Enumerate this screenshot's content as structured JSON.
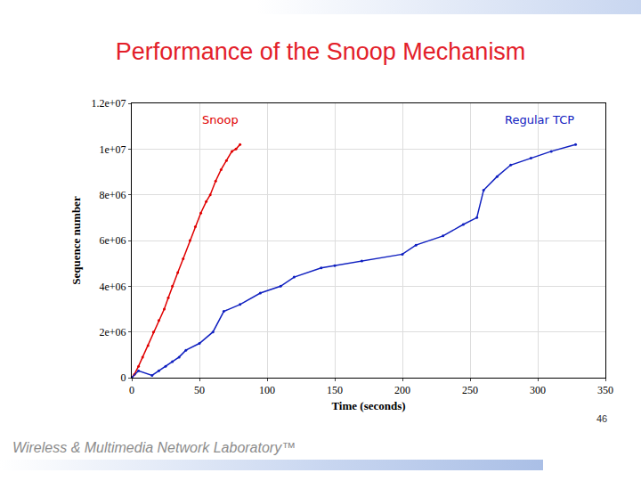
{
  "chart_data": {
    "type": "scatter",
    "title": "Performance of the Snoop Mechanism",
    "x_label": "Time (seconds)",
    "y_label": "Sequence number",
    "series": [
      {
        "name": "Snoop",
        "color": "#e00000",
        "x": [
          0,
          2,
          5,
          8,
          12,
          16,
          20,
          24,
          27,
          30,
          34,
          38,
          43,
          47,
          51,
          55,
          58,
          62,
          66,
          70,
          74,
          77,
          80
        ],
        "values": [
          0,
          150000,
          500000,
          900000,
          1400000,
          2000000,
          2500000,
          3000000,
          3500000,
          4000000,
          4600000,
          5200000,
          6000000,
          6600000,
          7200000,
          7700000,
          8000000,
          8600000,
          9100000,
          9500000,
          9900000,
          10000000,
          10200000
        ]
      },
      {
        "name": "Regular TCP",
        "color": "#1020c0",
        "x": [
          0,
          5,
          15,
          20,
          25,
          30,
          35,
          40,
          50,
          60,
          68,
          80,
          95,
          110,
          120,
          140,
          150,
          170,
          200,
          210,
          230,
          245,
          255,
          260,
          270,
          280,
          295,
          310,
          328
        ],
        "values": [
          0,
          300000,
          100000,
          300000,
          500000,
          700000,
          900000,
          1200000,
          1500000,
          2000000,
          2900000,
          3200000,
          3700000,
          4000000,
          4400000,
          4800000,
          4900000,
          5100000,
          5400000,
          5800000,
          6200000,
          6700000,
          7000000,
          8200000,
          8800000,
          9300000,
          9600000,
          9900000,
          10200000
        ]
      }
    ],
    "xlim": [
      0,
      350
    ],
    "ylim": [
      0,
      12000000
    ],
    "xticks": [
      0,
      50,
      100,
      150,
      200,
      250,
      300,
      350
    ],
    "yticks": [
      0,
      {
        "value": 2000000,
        "label": "2e+06"
      },
      {
        "value": 4000000,
        "label": "4e+06"
      },
      {
        "value": 6000000,
        "label": "6e+06"
      },
      {
        "value": 8000000,
        "label": "8e+06"
      },
      {
        "value": 10000000,
        "label": "1e+07"
      },
      {
        "value": 12000000,
        "label": "1.2e+07"
      }
    ],
    "grid": true,
    "marker": "circle",
    "line_style": "solid"
  },
  "footer": "Wireless & Multimedia Network Laboratory™",
  "page_number": 46
}
